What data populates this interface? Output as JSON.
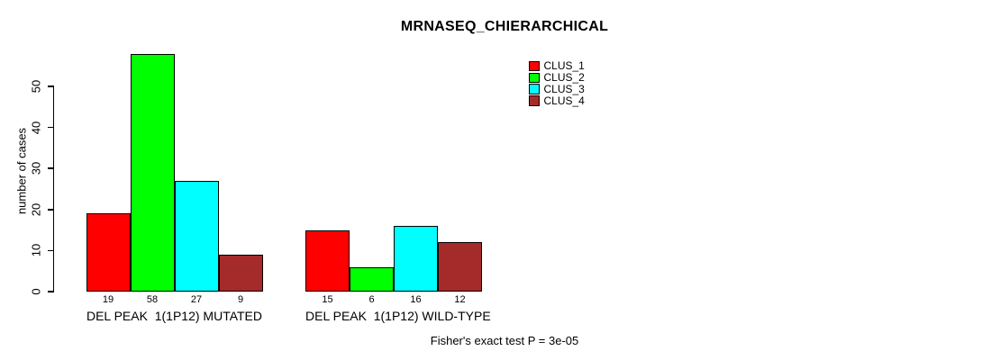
{
  "title": "MRNASEQ_CHIERARCHICAL",
  "y_axis": {
    "label": "number of cases",
    "ticks": [
      0,
      10,
      20,
      30,
      40,
      50
    ]
  },
  "legend": {
    "items": [
      {
        "label": "CLUS_1",
        "color": "#ff0000"
      },
      {
        "label": "CLUS_2",
        "color": "#00ff00"
      },
      {
        "label": "CLUS_3",
        "color": "#00ffff"
      },
      {
        "label": "CLUS_4",
        "color": "#a52a2a"
      }
    ]
  },
  "annotation": "Fisher's exact test P = 3e-05",
  "chart_data": {
    "type": "bar",
    "title": "MRNASEQ_CHIERARCHICAL",
    "xlabel": "",
    "ylabel": "number of cases",
    "ylim": [
      0,
      58
    ],
    "yticks": [
      0,
      10,
      20,
      30,
      40,
      50
    ],
    "grid": false,
    "legend_position": "top-right",
    "categories": [
      "DEL PEAK  1(1P12) MUTATED",
      "DEL PEAK  1(1P12) WILD-TYPE"
    ],
    "series": [
      {
        "name": "CLUS_1",
        "color": "#ff0000",
        "values": [
          19,
          15
        ]
      },
      {
        "name": "CLUS_2",
        "color": "#00ff00",
        "values": [
          58,
          6
        ]
      },
      {
        "name": "CLUS_3",
        "color": "#00ffff",
        "values": [
          27,
          16
        ]
      },
      {
        "name": "CLUS_4",
        "color": "#a52a2a",
        "values": [
          9,
          12
        ]
      }
    ],
    "bar_labels": [
      [
        19,
        58,
        27,
        9
      ],
      [
        15,
        6,
        16,
        12
      ]
    ],
    "annotation": "Fisher's exact test P = 3e-05"
  }
}
